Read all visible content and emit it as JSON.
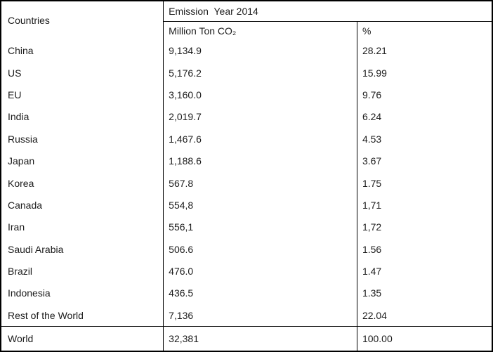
{
  "colors": {
    "border": "#000000",
    "text": "#1c1c1c",
    "background": "#ffffff"
  },
  "table": {
    "header": {
      "countries_label": "Countries",
      "emission_label": "Emission  Year 2014",
      "unit_label": "Million Ton CO₂",
      "percent_label": "%"
    },
    "rows": [
      {
        "country": "China",
        "value": "9,134.9",
        "percent": "28.21"
      },
      {
        "country": "US",
        "value": "5,176.2",
        "percent": "15.99"
      },
      {
        "country": "EU",
        "value": "3,160.0",
        "percent": "9.76"
      },
      {
        "country": "India",
        "value": "2,019.7",
        "percent": "6.24"
      },
      {
        "country": "Russia",
        "value": "1,467.6",
        "percent": "4.53"
      },
      {
        "country": "Japan",
        "value": "1,188.6",
        "percent": "3.67"
      },
      {
        "country": "Korea",
        "value": "567.8",
        "percent": "1.75"
      },
      {
        "country": "Canada",
        "value": "554,8",
        "percent": "1,71"
      },
      {
        "country": "Iran",
        "value": "556,1",
        "percent": "1,72"
      },
      {
        "country": "Saudi Arabia",
        "value": "506.6",
        "percent": "1.56"
      },
      {
        "country": "Brazil",
        "value": "476.0",
        "percent": "1.47"
      },
      {
        "country": "Indonesia",
        "value": "436.5",
        "percent": "1.35"
      },
      {
        "country": "Rest of the World",
        "value": "7,136",
        "percent": "22.04"
      }
    ],
    "total_row": {
      "country": "World",
      "value": "32,381",
      "percent": "100.00"
    }
  },
  "chart_data": {
    "type": "table",
    "title": "Emission  Year 2014",
    "columns": [
      "Countries",
      "Million Ton CO₂",
      "%"
    ],
    "rows": [
      [
        "China",
        "9,134.9",
        "28.21"
      ],
      [
        "US",
        "5,176.2",
        "15.99"
      ],
      [
        "EU",
        "3,160.0",
        "9.76"
      ],
      [
        "India",
        "2,019.7",
        "6.24"
      ],
      [
        "Russia",
        "1,467.6",
        "4.53"
      ],
      [
        "Japan",
        "1,188.6",
        "3.67"
      ],
      [
        "Korea",
        "567.8",
        "1.75"
      ],
      [
        "Canada",
        "554,8",
        "1,71"
      ],
      [
        "Iran",
        "556,1",
        "1,72"
      ],
      [
        "Saudi Arabia",
        "506.6",
        "1.56"
      ],
      [
        "Brazil",
        "476.0",
        "1.47"
      ],
      [
        "Indonesia",
        "436.5",
        "1.35"
      ],
      [
        "Rest of the World",
        "7,136",
        "22.04"
      ],
      [
        "World",
        "32,381",
        "100.00"
      ]
    ]
  }
}
